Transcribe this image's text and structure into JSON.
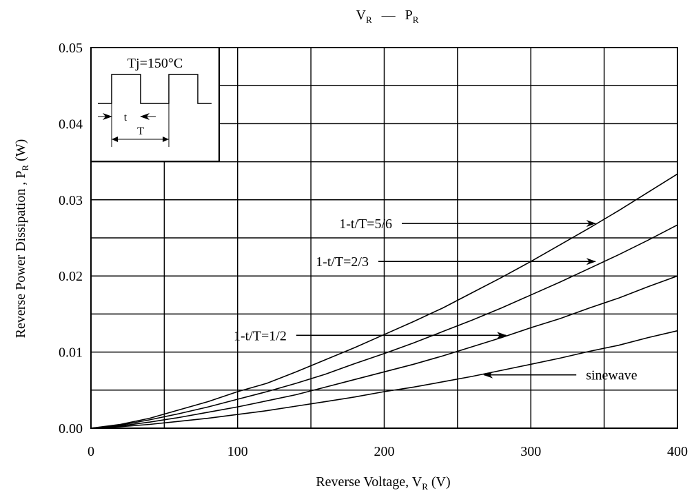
{
  "chart_data": {
    "type": "line",
    "title": {
      "main_v": "V",
      "main_v_sub": "R",
      "dash": "—",
      "main_p": "P",
      "main_p_sub": "R"
    },
    "xlabel": {
      "text": "Reverse Voltage, V",
      "sub": "R",
      "unit": " (V)"
    },
    "ylabel": {
      "text": "Reverse Power Dissipation , P",
      "sub": "R",
      "unit": " (W)"
    },
    "xlim": [
      0,
      400
    ],
    "ylim": [
      0,
      0.05
    ],
    "x_ticks": [
      0,
      100,
      200,
      300,
      400
    ],
    "x_tick_labels": [
      "0",
      "100",
      "200",
      "300",
      "400"
    ],
    "y_ticks": [
      0,
      0.01,
      0.02,
      0.03,
      0.04,
      0.05
    ],
    "y_tick_labels": [
      "0.00",
      "0.01",
      "0.02",
      "0.03",
      "0.04",
      "0.05"
    ],
    "x_grid_step": 50,
    "y_grid_step": 0.005,
    "grid": true,
    "series": [
      {
        "name": "1-t/T=5/6",
        "x": [
          0,
          20,
          40,
          60,
          80,
          100,
          120,
          140,
          160,
          180,
          200,
          220,
          240,
          260,
          280,
          300,
          320,
          340,
          360,
          380,
          400
        ],
        "values": [
          0,
          0.0005,
          0.0013,
          0.0024,
          0.0035,
          0.0048,
          0.0059,
          0.0074,
          0.009,
          0.0106,
          0.0123,
          0.014,
          0.0158,
          0.0178,
          0.0198,
          0.0219,
          0.0241,
          0.0263,
          0.0286,
          0.031,
          0.0334
        ]
      },
      {
        "name": "1-t/T=2/3",
        "x": [
          0,
          20,
          40,
          60,
          80,
          100,
          120,
          140,
          160,
          180,
          200,
          220,
          240,
          260,
          280,
          300,
          320,
          340,
          360,
          380,
          400
        ],
        "values": [
          0,
          0.0004,
          0.0011,
          0.0019,
          0.0028,
          0.0038,
          0.0048,
          0.0059,
          0.0071,
          0.0085,
          0.0098,
          0.0112,
          0.0127,
          0.0142,
          0.0158,
          0.0175,
          0.0192,
          0.021,
          0.0228,
          0.0247,
          0.0267
        ]
      },
      {
        "name": "1-t/T=1/2",
        "x": [
          0,
          20,
          40,
          60,
          80,
          100,
          120,
          140,
          160,
          180,
          200,
          220,
          240,
          260,
          280,
          300,
          320,
          340,
          360,
          380,
          400
        ],
        "values": [
          0,
          0.0003,
          0.0008,
          0.0014,
          0.0021,
          0.0028,
          0.0036,
          0.0044,
          0.0054,
          0.0064,
          0.0074,
          0.0084,
          0.0095,
          0.0107,
          0.0119,
          0.0132,
          0.0144,
          0.0158,
          0.0171,
          0.0186,
          0.02
        ]
      },
      {
        "name": "sinewave",
        "x": [
          0,
          20,
          40,
          60,
          80,
          100,
          120,
          140,
          160,
          180,
          200,
          220,
          240,
          260,
          280,
          300,
          320,
          340,
          360,
          380,
          400
        ],
        "values": [
          0,
          0.0002,
          0.0005,
          0.0009,
          0.0013,
          0.0018,
          0.0023,
          0.0029,
          0.0035,
          0.0041,
          0.0048,
          0.0054,
          0.0061,
          0.0068,
          0.0076,
          0.0084,
          0.0092,
          0.0101,
          0.0109,
          0.0119,
          0.0128
        ]
      }
    ],
    "annotations": [
      {
        "text": "1-t/T=5/6",
        "arrow_from": [
          212,
          0.0269
        ],
        "arrow_to": [
          344,
          0.0269
        ]
      },
      {
        "text": "1-t/T=2/3",
        "arrow_from": [
          196,
          0.0219
        ],
        "arrow_to": [
          344,
          0.0219
        ]
      },
      {
        "text": "1-t/T=1/2",
        "arrow_from": [
          140,
          0.0122
        ],
        "arrow_to": [
          283,
          0.0122
        ]
      },
      {
        "text": "sinewave",
        "arrow_from": [
          331,
          0.007
        ],
        "arrow_to": [
          268,
          0.007
        ]
      }
    ],
    "inset": {
      "label": "Tj=150°C",
      "t_label": "t",
      "T_label": "T"
    }
  }
}
